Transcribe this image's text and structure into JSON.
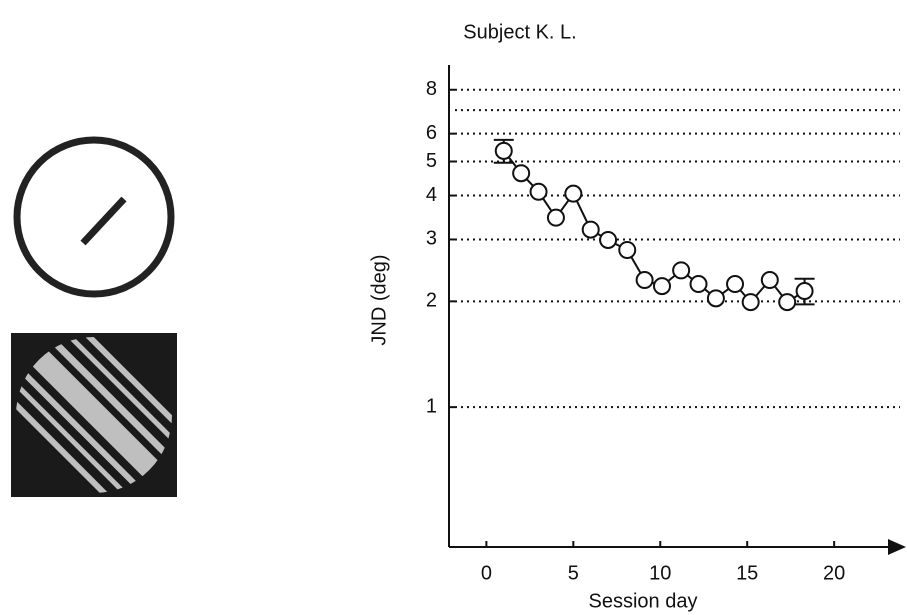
{
  "chart_data": {
    "type": "line",
    "title": "Subject K. L.",
    "x_label": "Session day",
    "y_label": "JND (deg)",
    "x": [
      1,
      2,
      3,
      4,
      5,
      6,
      7,
      8.1,
      9.1,
      10.1,
      11.2,
      12.2,
      13.2,
      14.3,
      15.2,
      16.3,
      17.3,
      18.3
    ],
    "values": [
      5.36,
      4.63,
      4.1,
      3.46,
      4.05,
      3.2,
      2.99,
      2.8,
      2.3,
      2.21,
      2.45,
      2.24,
      2.04,
      2.24,
      1.99,
      2.3,
      1.99,
      2.14
    ],
    "errors": [
      0.4,
      null,
      null,
      null,
      null,
      null,
      null,
      null,
      null,
      null,
      null,
      null,
      null,
      null,
      null,
      null,
      null,
      0.18
    ],
    "color": "#111111",
    "xlim": [
      -2.15,
      23.5
    ],
    "xticks": [
      0,
      5,
      10,
      15,
      20
    ],
    "ylim": [
      0.4,
      8.5
    ],
    "yticks": [
      1,
      2,
      3,
      4,
      5,
      6,
      8
    ],
    "minor_yticks": [
      7
    ],
    "log_y": true,
    "grid": "dotted"
  }
}
